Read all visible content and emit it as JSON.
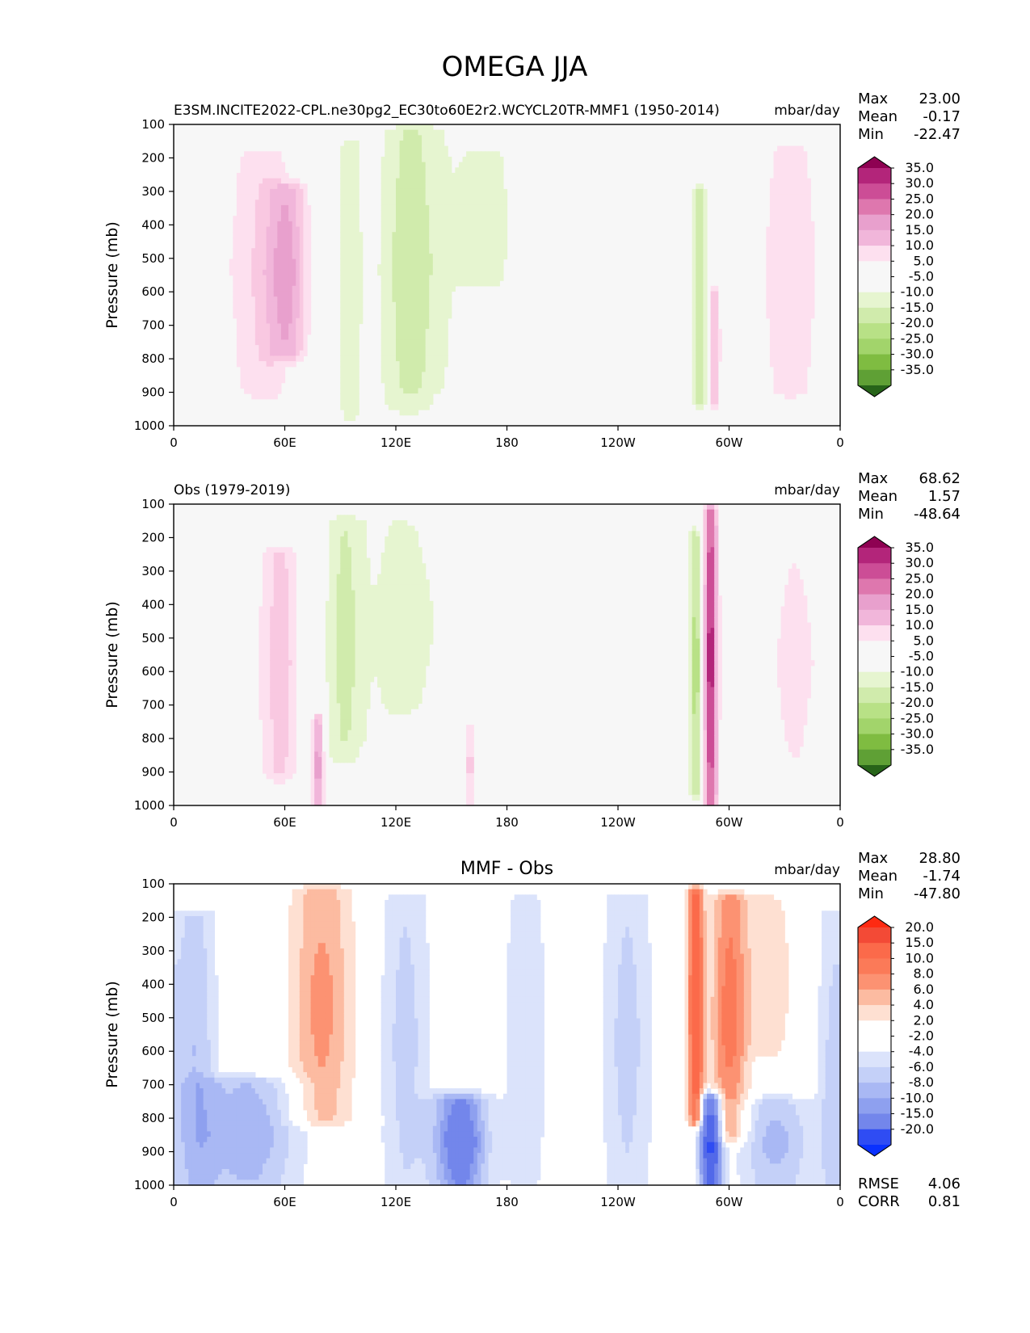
{
  "title": "OMEGA JJA",
  "colors": {
    "pos": [
      "#f7f7f7",
      "#fde0ef",
      "#f9c8e1",
      "#f1b6da",
      "#e8a0cd",
      "#de77ae",
      "#cc4d96",
      "#b3257a",
      "#8e0152"
    ],
    "neg": [
      "#f7f7f7",
      "#e6f5d0",
      "#d0ebac",
      "#b8e186",
      "#a2d46b",
      "#7fbc41",
      "#5fa035",
      "#4d9221",
      "#276419"
    ],
    "diffpos": [
      "#ffffff",
      "#fee0d2",
      "#fcbba1",
      "#fc9272",
      "#fb7a58",
      "#fb6a4a",
      "#f34a36",
      "#fe2a12"
    ],
    "diffneg": [
      "#ffffff",
      "#dbe3fb",
      "#c4d0f8",
      "#a9b8f4",
      "#8ea0ef",
      "#7386eb",
      "#5269e9",
      "#2f4cf3",
      "#0a31ff"
    ]
  },
  "chart_data": [
    {
      "type": "heatmap",
      "id": "model",
      "left_title": "E3SM.INCITE2022-CPL.ne30pg2_EC30to60E2r2.WCYCL20TR-MMF1 (1950-2014)",
      "center_title": "",
      "units": "mbar/day",
      "ylabel": "Pressure (mb)",
      "yticks": [
        "100",
        "200",
        "300",
        "400",
        "500",
        "600",
        "700",
        "800",
        "900",
        "1000"
      ],
      "xticks": [
        "0",
        "60E",
        "120E",
        "180",
        "120W",
        "60W",
        "0"
      ],
      "xlim": [
        0,
        360
      ],
      "ylim": [
        1000,
        100
      ],
      "stats": [
        {
          "label": "Max",
          "value": "23.00"
        },
        {
          "label": "Mean",
          "value": "-0.17"
        },
        {
          "label": "Min",
          "value": "-22.47"
        }
      ],
      "colorbar": {
        "palette": "pinkgreen",
        "levels": [
          "35.0",
          "30.0",
          "25.0",
          "20.0",
          "15.0",
          "10.0",
          "5.0",
          "-5.0",
          "-10.0",
          "-15.0",
          "-20.0",
          "-25.0",
          "-30.0",
          "-35.0"
        ],
        "colors": [
          "#8e0152",
          "#b3257a",
          "#cc4d96",
          "#de77ae",
          "#e8a0cd",
          "#f1b6da",
          "#fde0ef",
          "#f7f7f7",
          "#f7f7f7",
          "#e6f5d0",
          "#d0ebac",
          "#b8e186",
          "#a2d46b",
          "#7fbc41",
          "#5fa035",
          "#276419"
        ]
      },
      "features": [
        {
          "lon": 30,
          "sig": 14,
          "ptop": 160,
          "pbot": 880,
          "amp": 4
        },
        {
          "lon": 50,
          "sig": 9,
          "ptop": 200,
          "pbot": 900,
          "amp": 10
        },
        {
          "lon": 62,
          "sig": 7,
          "ptop": 300,
          "pbot": 780,
          "amp": 20
        },
        {
          "lon": 95,
          "sig": 5,
          "ptop": 160,
          "pbot": 970,
          "amp": -9
        },
        {
          "lon": 127,
          "sig": 11,
          "ptop": 130,
          "pbot": 940,
          "amp": -12
        },
        {
          "lon": 150,
          "sig": 22,
          "ptop": 120,
          "pbot": 880,
          "amp": -4
        },
        {
          "lon": 170,
          "sig": 10,
          "ptop": 200,
          "pbot": 560,
          "amp": -6
        },
        {
          "lon": 222,
          "sig": 9,
          "ptop": 200,
          "pbot": 900,
          "amp": 4
        },
        {
          "lon": 258,
          "sig": 5,
          "ptop": 200,
          "pbot": 620,
          "amp": -3
        },
        {
          "lon": 284,
          "sig": 2.5,
          "ptop": 300,
          "pbot": 930,
          "amp": -16
        },
        {
          "lon": 292,
          "sig": 2,
          "ptop": 600,
          "pbot": 930,
          "amp": 16
        },
        {
          "lon": 333,
          "sig": 14,
          "ptop": 180,
          "pbot": 900,
          "amp": 8
        }
      ]
    },
    {
      "type": "heatmap",
      "id": "obs",
      "left_title": "Obs (1979-2019)",
      "center_title": "",
      "units": "mbar/day",
      "ylabel": "Pressure (mb)",
      "yticks": [
        "100",
        "200",
        "300",
        "400",
        "500",
        "600",
        "700",
        "800",
        "900",
        "1000"
      ],
      "xticks": [
        "0",
        "60E",
        "120E",
        "180",
        "120W",
        "60W",
        "0"
      ],
      "xlim": [
        0,
        360
      ],
      "ylim": [
        1000,
        100
      ],
      "stats": [
        {
          "label": "Max",
          "value": "68.62"
        },
        {
          "label": "Mean",
          "value": "1.57"
        },
        {
          "label": "Min",
          "value": "-48.64"
        }
      ],
      "colorbar": {
        "palette": "pinkgreen",
        "levels": [
          "35.0",
          "30.0",
          "25.0",
          "20.0",
          "15.0",
          "10.0",
          "5.0",
          "-5.0",
          "-10.0",
          "-15.0",
          "-20.0",
          "-25.0",
          "-30.0",
          "-35.0"
        ],
        "colors": [
          "#8e0152",
          "#b3257a",
          "#cc4d96",
          "#de77ae",
          "#e8a0cd",
          "#f1b6da",
          "#fde0ef",
          "#f7f7f7",
          "#f7f7f7",
          "#e6f5d0",
          "#d0ebac",
          "#b8e186",
          "#a2d46b",
          "#7fbc41",
          "#5fa035",
          "#276419"
        ]
      },
      "features": [
        {
          "lon": 30,
          "sig": 18,
          "ptop": 150,
          "pbot": 990,
          "amp": 5
        },
        {
          "lon": 58,
          "sig": 6,
          "ptop": 250,
          "pbot": 900,
          "amp": 13
        },
        {
          "lon": 78,
          "sig": 2,
          "ptop": 750,
          "pbot": 990,
          "amp": 25
        },
        {
          "lon": 92,
          "sig": 7,
          "ptop": 160,
          "pbot": 850,
          "amp": -12
        },
        {
          "lon": 120,
          "sig": 15,
          "ptop": 150,
          "pbot": 800,
          "amp": -6
        },
        {
          "lon": 150,
          "sig": 20,
          "ptop": 170,
          "pbot": 700,
          "amp": -3
        },
        {
          "lon": 160,
          "sig": 2,
          "ptop": 780,
          "pbot": 990,
          "amp": 12
        },
        {
          "lon": 225,
          "sig": 8,
          "ptop": 200,
          "pbot": 990,
          "amp": 4
        },
        {
          "lon": 282,
          "sig": 2.5,
          "ptop": 200,
          "pbot": 960,
          "amp": -18
        },
        {
          "lon": 290,
          "sig": 2.5,
          "ptop": 130,
          "pbot": 990,
          "amp": 40
        },
        {
          "lon": 335,
          "sig": 15,
          "ptop": 150,
          "pbot": 990,
          "amp": 6
        }
      ]
    },
    {
      "type": "heatmap",
      "id": "diff",
      "left_title": "",
      "center_title": "MMF - Obs",
      "units": "mbar/day",
      "ylabel": "Pressure (mb)",
      "yticks": [
        "100",
        "200",
        "300",
        "400",
        "500",
        "600",
        "700",
        "800",
        "900",
        "1000"
      ],
      "xticks": [
        "0",
        "60E",
        "120E",
        "180",
        "120W",
        "60W",
        "0"
      ],
      "xlim": [
        0,
        360
      ],
      "ylim": [
        1000,
        100
      ],
      "stats": [
        {
          "label": "Max",
          "value": "28.80"
        },
        {
          "label": "Mean",
          "value": "-1.74"
        },
        {
          "label": "Min",
          "value": "-47.80"
        }
      ],
      "extra_stats": [
        {
          "label": "RMSE",
          "value": "4.06"
        },
        {
          "label": "CORR",
          "value": "0.81"
        }
      ],
      "colorbar": {
        "palette": "redblue",
        "levels": [
          "20.0",
          "15.0",
          "10.0",
          "8.0",
          "6.0",
          "4.0",
          "2.0",
          "-2.0",
          "-4.0",
          "-6.0",
          "-8.0",
          "-10.0",
          "-15.0",
          "-20.0"
        ],
        "colors": [
          "#fe2a12",
          "#f34a36",
          "#fb6a4a",
          "#fb7a58",
          "#fc9272",
          "#fcbba1",
          "#fee0d2",
          "#ffffff",
          "#ffffff",
          "#dbe3fb",
          "#c4d0f8",
          "#a9b8f4",
          "#8ea0ef",
          "#7386eb",
          "#2f4cf3",
          "#0a31ff"
        ]
      },
      "features": [
        {
          "lon": 12,
          "sig": 8,
          "ptop": 200,
          "pbot": 990,
          "amp": -6
        },
        {
          "lon": 40,
          "sig": 20,
          "ptop": 700,
          "pbot": 990,
          "amp": -8
        },
        {
          "lon": 80,
          "sig": 12,
          "ptop": 130,
          "pbot": 800,
          "amp": 7
        },
        {
          "lon": 125,
          "sig": 10,
          "ptop": 150,
          "pbot": 990,
          "amp": -5
        },
        {
          "lon": 155,
          "sig": 10,
          "ptop": 750,
          "pbot": 990,
          "amp": -14
        },
        {
          "lon": 190,
          "sig": 9,
          "ptop": 150,
          "pbot": 980,
          "amp": -4
        },
        {
          "lon": 245,
          "sig": 10,
          "ptop": 150,
          "pbot": 990,
          "amp": -5
        },
        {
          "lon": 282,
          "sig": 3,
          "ptop": 130,
          "pbot": 800,
          "amp": 14
        },
        {
          "lon": 290,
          "sig": 4,
          "ptop": 750,
          "pbot": 990,
          "amp": -22
        },
        {
          "lon": 300,
          "sig": 7,
          "ptop": 150,
          "pbot": 850,
          "amp": 9
        },
        {
          "lon": 322,
          "sig": 12,
          "ptop": 150,
          "pbot": 600,
          "amp": 3
        },
        {
          "lon": 325,
          "sig": 14,
          "ptop": 760,
          "pbot": 990,
          "amp": -7
        },
        {
          "lon": 355,
          "sig": 6,
          "ptop": 200,
          "pbot": 990,
          "amp": -4
        }
      ]
    }
  ]
}
